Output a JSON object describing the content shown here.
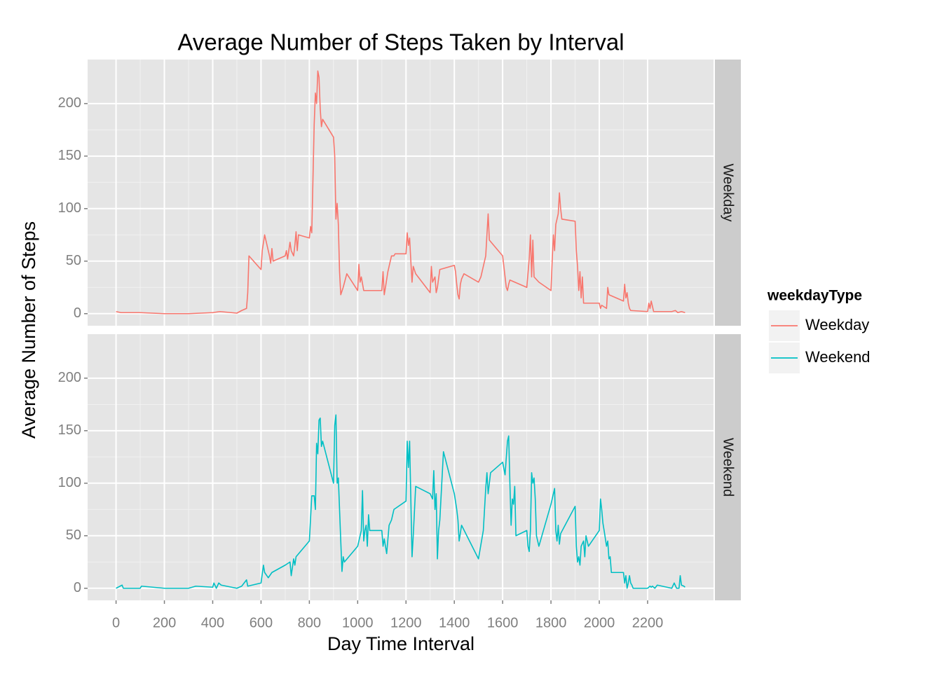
{
  "chart_data": {
    "type": "line",
    "title": "Average Number of Steps Taken by Interval",
    "x_label": "Day Time Interval",
    "y_label": "Average Number of Steps",
    "legend_title": "weekdayType",
    "legend_position": "right",
    "grid": true,
    "facet": true,
    "xlim": [
      -117.75,
      2472.75
    ],
    "xticks": [
      0,
      200,
      400,
      600,
      800,
      1000,
      1200,
      1400,
      1600,
      1800,
      2000,
      2200
    ],
    "ylim": [
      -11.5,
      241.9
    ],
    "yticks": [
      0,
      50,
      100,
      150,
      200
    ],
    "series": [
      {
        "name": "Weekday",
        "color": "#F8766D",
        "x": [
          0,
          20,
          100,
          200,
          300,
          400,
          430,
          500,
          520,
          540,
          545,
          550,
          600,
          605,
          615,
          625,
          635,
          640,
          645,
          650,
          700,
          705,
          710,
          720,
          725,
          735,
          740,
          745,
          750,
          755,
          800,
          805,
          810,
          820,
          825,
          830,
          835,
          840,
          845,
          850,
          855,
          900,
          905,
          910,
          915,
          920,
          925,
          930,
          940,
          955,
          1000,
          1005,
          1010,
          1015,
          1025,
          1100,
          1105,
          1110,
          1115,
          1125,
          1140,
          1150,
          1155,
          1200,
          1205,
          1210,
          1215,
          1220,
          1225,
          1230,
          1240,
          1300,
          1305,
          1310,
          1320,
          1325,
          1330,
          1340,
          1400,
          1405,
          1410,
          1415,
          1420,
          1425,
          1430,
          1440,
          1500,
          1510,
          1520,
          1530,
          1540,
          1545,
          1600,
          1605,
          1610,
          1615,
          1620,
          1625,
          1630,
          1700,
          1710,
          1715,
          1720,
          1725,
          1730,
          1750,
          1800,
          1805,
          1810,
          1815,
          1820,
          1830,
          1835,
          1840,
          1845,
          1900,
          1905,
          1910,
          1915,
          1920,
          1925,
          1930,
          1935,
          2000,
          2005,
          2010,
          2030,
          2035,
          2040,
          2100,
          2105,
          2110,
          2115,
          2120,
          2125,
          2130,
          2200,
          2205,
          2210,
          2215,
          2225,
          2300,
          2315,
          2325,
          2340,
          2355
        ],
        "values": [
          2,
          1,
          1,
          0,
          0,
          1,
          2,
          0.5,
          3,
          5,
          20,
          55,
          42,
          60,
          75,
          65,
          55,
          48,
          62,
          50,
          55,
          60,
          52,
          68,
          60,
          55,
          65,
          78,
          60,
          75,
          72,
          83,
          77,
          180,
          210,
          200,
          231,
          225,
          195,
          178,
          185,
          168,
          150,
          90,
          105,
          85,
          40,
          18,
          25,
          38,
          22,
          47,
          30,
          35,
          22,
          22,
          40,
          18,
          25,
          40,
          55,
          55,
          57,
          57,
          77,
          65,
          72,
          50,
          30,
          45,
          38,
          20,
          45,
          30,
          35,
          20,
          25,
          42,
          46,
          40,
          28,
          18,
          14,
          28,
          33,
          38,
          30,
          35,
          45,
          55,
          95,
          70,
          55,
          45,
          35,
          25,
          22,
          28,
          32,
          25,
          52,
          75,
          35,
          70,
          35,
          30,
          22,
          50,
          75,
          60,
          85,
          95,
          115,
          100,
          90,
          88,
          60,
          45,
          22,
          40,
          15,
          35,
          10,
          10,
          5,
          8,
          5,
          25,
          18,
          12,
          28,
          15,
          20,
          10,
          5,
          3,
          2,
          10,
          5,
          12,
          2,
          2,
          3,
          1,
          2,
          1
        ]
      },
      {
        "name": "Weekend",
        "color": "#00BFC4",
        "x": [
          0,
          25,
          30,
          100,
          105,
          200,
          300,
          330,
          400,
          405,
          415,
          425,
          435,
          500,
          520,
          540,
          545,
          600,
          610,
          615,
          630,
          645,
          700,
          720,
          725,
          735,
          740,
          745,
          800,
          810,
          820,
          825,
          830,
          835,
          840,
          845,
          850,
          855,
          900,
          905,
          910,
          915,
          920,
          930,
          935,
          940,
          945,
          1000,
          1015,
          1020,
          1025,
          1030,
          1035,
          1040,
          1045,
          1050,
          1100,
          1105,
          1110,
          1115,
          1120,
          1130,
          1140,
          1150,
          1200,
          1205,
          1210,
          1215,
          1220,
          1225,
          1230,
          1240,
          1300,
          1310,
          1315,
          1320,
          1325,
          1330,
          1335,
          1340,
          1355,
          1400,
          1410,
          1415,
          1420,
          1430,
          1500,
          1520,
          1530,
          1535,
          1540,
          1545,
          1550,
          1600,
          1610,
          1620,
          1625,
          1630,
          1635,
          1640,
          1645,
          1650,
          1655,
          1700,
          1705,
          1710,
          1715,
          1720,
          1725,
          1730,
          1735,
          1740,
          1745,
          1750,
          1800,
          1815,
          1820,
          1825,
          1830,
          1835,
          1840,
          1900,
          1905,
          1910,
          1915,
          1920,
          1925,
          1935,
          1940,
          1945,
          1955,
          2000,
          2005,
          2010,
          2015,
          2020,
          2030,
          2035,
          2040,
          2045,
          2050,
          2100,
          2105,
          2110,
          2115,
          2120,
          2125,
          2130,
          2135,
          2140,
          2200,
          2210,
          2215,
          2220,
          2230,
          2240,
          2300,
          2310,
          2320,
          2330,
          2335,
          2340,
          2350,
          2355
        ],
        "values": [
          0,
          3,
          0,
          0,
          2,
          0,
          0,
          2,
          1,
          5,
          0,
          5,
          3,
          0,
          2,
          8,
          2,
          5,
          22,
          15,
          10,
          15,
          22,
          25,
          12,
          28,
          22,
          30,
          45,
          88,
          88,
          75,
          138,
          128,
          160,
          162,
          135,
          140,
          100,
          155,
          165,
          100,
          105,
          45,
          16,
          30,
          25,
          40,
          55,
          93,
          45,
          55,
          60,
          40,
          70,
          55,
          55,
          40,
          47,
          40,
          33,
          60,
          65,
          75,
          83,
          140,
          115,
          140,
          85,
          30,
          50,
          97,
          90,
          85,
          112,
          75,
          90,
          28,
          55,
          65,
          130,
          90,
          75,
          65,
          45,
          60,
          28,
          55,
          95,
          110,
          90,
          100,
          110,
          120,
          108,
          140,
          145,
          100,
          60,
          85,
          80,
          97,
          50,
          55,
          40,
          35,
          55,
          110,
          100,
          105,
          85,
          50,
          45,
          40,
          80,
          95,
          55,
          45,
          60,
          42,
          52,
          78,
          40,
          25,
          30,
          22,
          40,
          45,
          30,
          50,
          40,
          55,
          85,
          75,
          62,
          55,
          40,
          45,
          28,
          30,
          15,
          15,
          5,
          12,
          0,
          5,
          12,
          5,
          3,
          0,
          0,
          2,
          1,
          2,
          0,
          3,
          0,
          5,
          0,
          0,
          12,
          3,
          2,
          1
        ]
      }
    ]
  }
}
